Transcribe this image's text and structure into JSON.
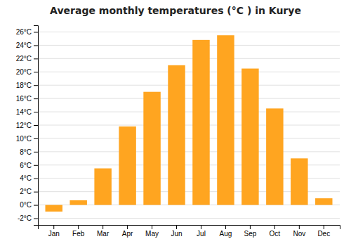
{
  "chart_data": {
    "type": "bar",
    "title": "Average monthly temperatures (°C ) in Kurye",
    "categories": [
      "Jan",
      "Feb",
      "Mar",
      "Apr",
      "May",
      "Jun",
      "Jul",
      "Aug",
      "Sep",
      "Oct",
      "Nov",
      "Dec"
    ],
    "values": [
      -1.0,
      0.7,
      5.5,
      11.8,
      17.0,
      21.0,
      24.8,
      25.5,
      20.5,
      14.5,
      7.0,
      1.0
    ],
    "color": "#FFA520",
    "ylim": [
      -3,
      27
    ],
    "yticks": [
      {
        "value": -2,
        "label": "-2°C"
      },
      {
        "value": 0,
        "label": "0°C"
      },
      {
        "value": 2,
        "label": "2°C"
      },
      {
        "value": 4,
        "label": "4°C"
      },
      {
        "value": 6,
        "label": "6°C"
      },
      {
        "value": 8,
        "label": "8°C"
      },
      {
        "value": 10,
        "label": "10°C"
      },
      {
        "value": 12,
        "label": "12°C"
      },
      {
        "value": 14,
        "label": "14°C"
      },
      {
        "value": 16,
        "label": "16°C"
      },
      {
        "value": 18,
        "label": "18°C"
      },
      {
        "value": 20,
        "label": "20°C"
      },
      {
        "value": 22,
        "label": "22°C"
      },
      {
        "value": 24,
        "label": "24°C"
      },
      {
        "value": 26,
        "label": "26°C"
      }
    ],
    "grid": true
  }
}
